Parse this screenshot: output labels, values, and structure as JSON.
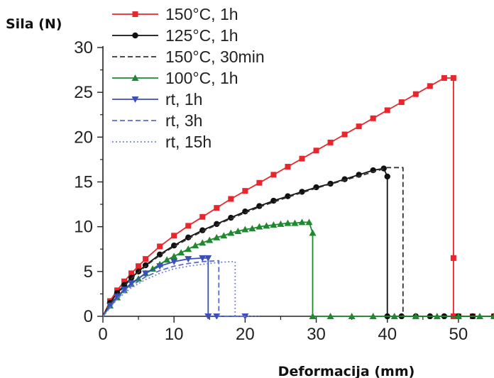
{
  "chart_data": {
    "type": "line",
    "ylabel": "Sila (N)",
    "xlabel": "Deformacija (mm)",
    "xlim": [
      0,
      55
    ],
    "ylim": [
      0,
      30
    ],
    "x_ticks": [
      "0",
      "10",
      "20",
      "30",
      "40",
      "50"
    ],
    "y_ticks": [
      "0",
      "5",
      "10",
      "15",
      "20",
      "25",
      "30"
    ],
    "grid": false,
    "legend_position": "top-left",
    "series": [
      {
        "name": "150°C, 1h",
        "color": "#e8262b",
        "line_style": "solid",
        "marker": "square",
        "x": [
          0,
          1,
          2,
          3,
          4,
          5,
          6,
          8,
          10,
          12,
          14,
          16,
          18,
          20,
          22,
          24,
          26,
          28,
          30,
          32,
          34,
          36,
          38,
          40,
          42,
          44,
          46,
          48,
          49.3,
          49.3,
          49.3,
          50,
          52,
          55
        ],
        "y": [
          0,
          1.7,
          2.9,
          3.9,
          4.8,
          5.6,
          6.4,
          7.8,
          9.0,
          10.1,
          11.1,
          12.1,
          13.1,
          14.0,
          14.9,
          15.8,
          16.7,
          17.6,
          18.5,
          19.4,
          20.3,
          21.2,
          22.1,
          23.0,
          23.9,
          24.8,
          25.7,
          26.6,
          26.6,
          6.5,
          0,
          0,
          0,
          0
        ]
      },
      {
        "name": "125°C, 1h",
        "color": "#111111",
        "line_style": "solid",
        "marker": "circle",
        "x": [
          0,
          1,
          2,
          3,
          4,
          5,
          6,
          8,
          10,
          12,
          14,
          16,
          18,
          20,
          22,
          24,
          26,
          28,
          30,
          32,
          34,
          36,
          38,
          39.5,
          40,
          40,
          42,
          44,
          46,
          48,
          50,
          52,
          55
        ],
        "y": [
          0,
          1.5,
          2.6,
          3.5,
          4.3,
          5.0,
          5.7,
          6.9,
          7.9,
          8.8,
          9.6,
          10.3,
          11.0,
          11.7,
          12.3,
          12.9,
          13.4,
          13.9,
          14.4,
          14.8,
          15.3,
          15.8,
          16.3,
          16.5,
          15.6,
          0,
          0,
          0,
          0,
          0,
          0,
          0,
          0
        ]
      },
      {
        "name": "150°C, 30min",
        "color": "#333333",
        "line_style": "dashed",
        "marker": "none",
        "x": [
          0,
          2,
          4,
          6,
          8,
          10,
          14,
          18,
          22,
          26,
          30,
          34,
          38,
          40,
          42.2,
          42.2,
          55
        ],
        "y": [
          0,
          2.5,
          4.2,
          5.6,
          6.8,
          7.8,
          9.5,
          10.9,
          12.2,
          13.3,
          14.3,
          15.2,
          16.1,
          16.6,
          16.6,
          0,
          0
        ]
      },
      {
        "name": "100°C, 1h",
        "color": "#1d8a2e",
        "line_style": "solid",
        "marker": "triangle-up",
        "x": [
          0,
          1,
          2,
          3,
          4,
          5,
          6,
          7,
          8,
          9,
          10,
          11,
          12,
          13,
          14,
          15,
          16,
          17,
          18,
          19,
          20,
          21,
          22,
          23,
          24,
          25,
          26,
          27,
          28,
          29,
          29.5,
          29.5,
          32,
          35,
          38,
          41,
          44,
          47,
          50,
          53,
          55
        ],
        "y": [
          0,
          1.2,
          2.1,
          2.9,
          3.6,
          4.2,
          4.8,
          5.3,
          5.8,
          6.3,
          6.7,
          7.1,
          7.5,
          7.9,
          8.2,
          8.5,
          8.8,
          9.0,
          9.3,
          9.5,
          9.7,
          9.8,
          10.0,
          10.1,
          10.2,
          10.3,
          10.4,
          10.4,
          10.5,
          10.5,
          9.3,
          0,
          0,
          0,
          0,
          0,
          0,
          0,
          0,
          0,
          0
        ]
      },
      {
        "name": "rt, 1h",
        "color": "#3a4fb8",
        "line_style": "solid",
        "marker": "triangle-down",
        "x": [
          0,
          1,
          2,
          3,
          4,
          6,
          8,
          10,
          12,
          14,
          14.8,
          14.8,
          16,
          20
        ],
        "y": [
          0,
          1.2,
          2.2,
          3.0,
          3.7,
          4.8,
          5.6,
          6.1,
          6.4,
          6.5,
          6.5,
          0,
          0,
          0
        ]
      },
      {
        "name": "rt, 3h",
        "color": "#5a6bd0",
        "line_style": "dashed",
        "marker": "none",
        "x": [
          0,
          2,
          4,
          6,
          8,
          10,
          12,
          14,
          16,
          16.3,
          16.3,
          20
        ],
        "y": [
          0,
          2.0,
          3.4,
          4.4,
          5.1,
          5.6,
          5.9,
          6.1,
          6.2,
          6.2,
          0,
          0
        ]
      },
      {
        "name": "rt, 15h",
        "color": "#6b7ad8",
        "line_style": "dotted",
        "marker": "none",
        "x": [
          0,
          2,
          4,
          6,
          8,
          10,
          12,
          14,
          16,
          18,
          18.6,
          18.6,
          22
        ],
        "y": [
          0,
          1.9,
          3.2,
          4.1,
          4.8,
          5.3,
          5.6,
          5.8,
          6.0,
          6.1,
          6.1,
          0,
          0
        ]
      }
    ]
  }
}
